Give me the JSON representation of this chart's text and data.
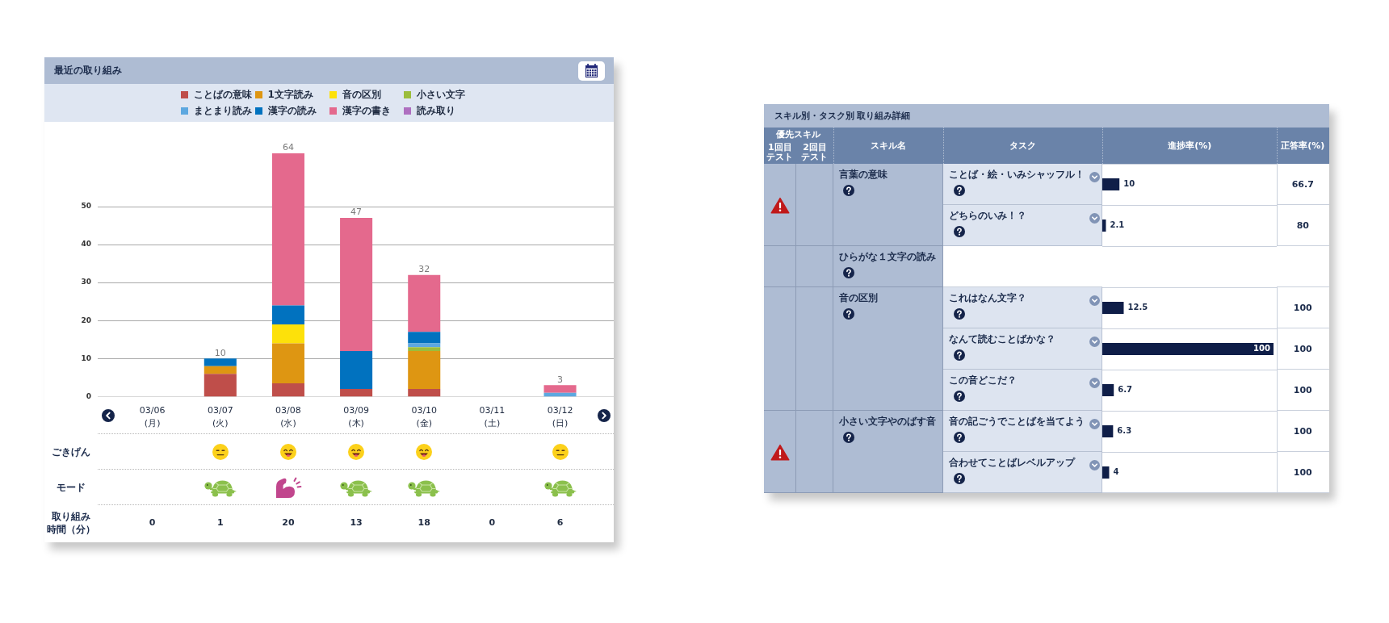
{
  "chart_data": [
    {
      "type": "bar",
      "title": "最近の取り組み",
      "categories": [
        "03/06\n(月)",
        "03/07\n(火)",
        "03/08\n(水)",
        "03/09\n(木)",
        "03/10\n(金)",
        "03/11\n(土)",
        "03/12\n(日)"
      ],
      "series": [
        {
          "name": "ことばの意味",
          "color": "#bf4e4a",
          "values": [
            0,
            6,
            3.5,
            2,
            2,
            0,
            0
          ]
        },
        {
          "name": "1文字読み",
          "color": "#de9612",
          "values": [
            0,
            2,
            10.5,
            0,
            10,
            0,
            0
          ]
        },
        {
          "name": "音の区別",
          "color": "#fde10a",
          "values": [
            0,
            0,
            5,
            0,
            0,
            0,
            0
          ]
        },
        {
          "name": "小さい文字",
          "color": "#9bbd3c",
          "values": [
            0,
            0,
            0,
            0,
            1,
            0,
            0
          ]
        },
        {
          "name": "まとまり読み",
          "color": "#5da8e0",
          "values": [
            0,
            0,
            0,
            0,
            1,
            0,
            1
          ]
        },
        {
          "name": "漢字の読み",
          "color": "#0172bf",
          "values": [
            0,
            2,
            5,
            10,
            3,
            0,
            0
          ]
        },
        {
          "name": "漢字の書き",
          "color": "#e4698d",
          "values": [
            0,
            0,
            40,
            35,
            15,
            0,
            2
          ]
        },
        {
          "name": "読み取り",
          "color": "#ae6fc0",
          "values": [
            0,
            0,
            0,
            0,
            0,
            0,
            0
          ]
        }
      ],
      "stacked": true,
      "ylim": [
        0,
        64
      ],
      "yticks": [
        0,
        10,
        20,
        30,
        40,
        50
      ],
      "grid": "y",
      "legend": "top",
      "totals": [
        null,
        "10",
        "64",
        "47",
        "32",
        null,
        "3"
      ],
      "annotations": [
        "ごきげん",
        "モード",
        "取り組み時間（分）",
        "0",
        "1",
        "20",
        "13",
        "18",
        "0",
        "6"
      ]
    },
    {
      "type": "bar",
      "orientation": "horizontal",
      "title": "スキル別・タスク別 取り組み詳細",
      "xlabel": "進捗率(%)",
      "ylabel": "タスク",
      "categories": [
        "ことば・絵・いみシャッフル！",
        "どちらのいみ！？",
        null,
        "これはなん文字？",
        "なんて読むことばかな？",
        "この音どこだ？",
        "音の記ごうでことばを当てよう",
        "合わせてことばレベルアップ"
      ],
      "y2_categories": [
        "言葉の意味",
        null,
        "ひらがな１文字の読み",
        "音の区別",
        null,
        null,
        "小さい文字やのばす音",
        null
      ],
      "values": [
        10,
        2.1,
        null,
        12.5,
        100,
        6.7,
        6.3,
        4
      ],
      "color": "#0f1e48",
      "data_labels": true,
      "xlim": [
        0,
        100
      ],
      "tick_labels": "y",
      "grid": "y",
      "annotations": [
        "優先スキル",
        "1回目テスト",
        "2回目テスト",
        "スキル名",
        "正答率(%)",
        "66.7",
        "80",
        "100",
        "100",
        "100",
        "100",
        "100"
      ]
    }
  ]
}
